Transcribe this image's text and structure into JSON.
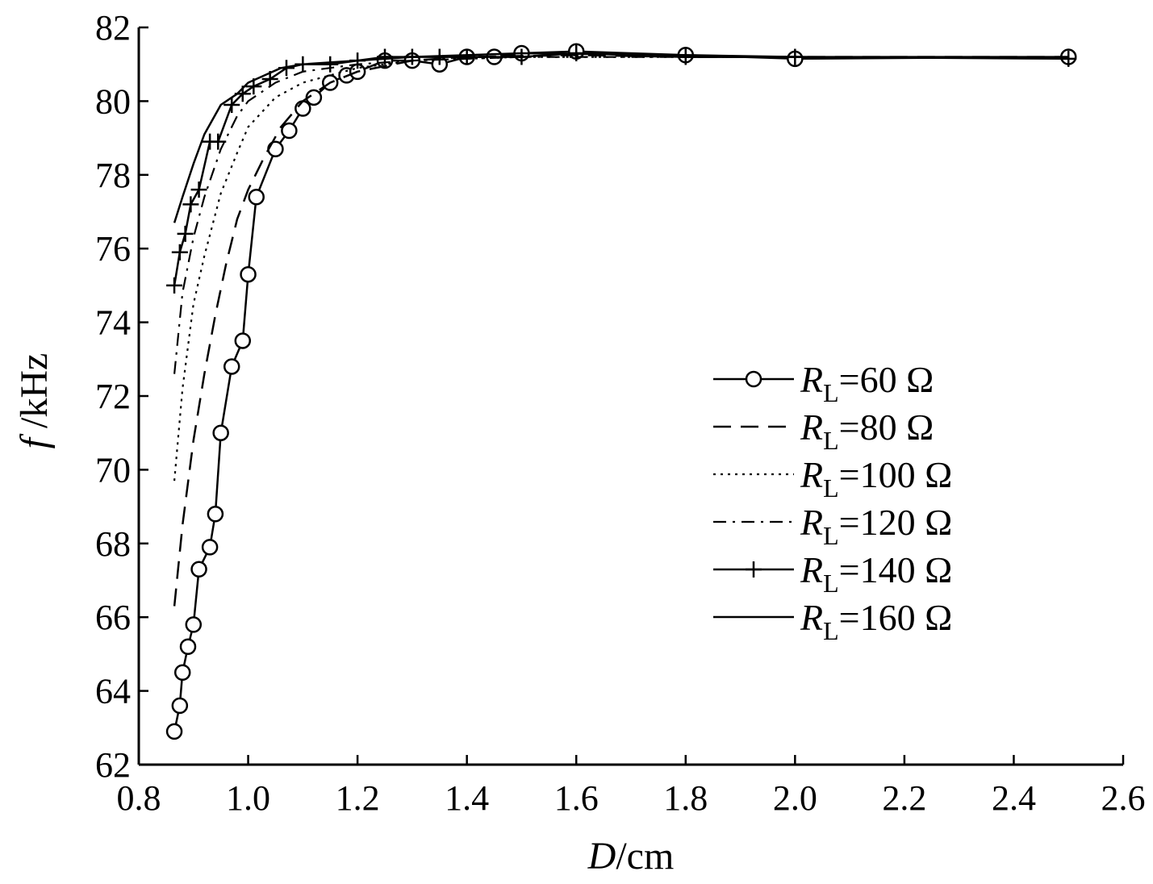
{
  "chart_data": {
    "type": "line",
    "title": "",
    "xlabel": {
      "var": "D",
      "unit": "/cm"
    },
    "ylabel": {
      "var": "f",
      "unit": " /kHz"
    },
    "xlim": [
      0.8,
      2.6
    ],
    "ylim": [
      62,
      82
    ],
    "xticks": [
      0.8,
      1.0,
      1.2,
      1.4,
      1.6,
      1.8,
      2.0,
      2.2,
      2.4,
      2.6
    ],
    "xtick_labels": [
      "0.8",
      "1.0",
      "1.2",
      "1.4",
      "1.6",
      "1.8",
      "2.0",
      "2.2",
      "2.4",
      "2.6"
    ],
    "yticks": [
      62,
      64,
      66,
      68,
      70,
      72,
      74,
      76,
      78,
      80,
      82
    ],
    "ytick_labels": [
      "62",
      "64",
      "66",
      "68",
      "70",
      "72",
      "74",
      "76",
      "78",
      "80",
      "82"
    ],
    "grid": false,
    "legend_position": "center-right",
    "series": [
      {
        "name": "RL=60 Ω",
        "label_var": "R",
        "label_sub": "L",
        "label_rest": "=60 Ω",
        "style": "solid",
        "marker": "circle",
        "x": [
          0.865,
          0.875,
          0.88,
          0.89,
          0.9,
          0.91,
          0.93,
          0.94,
          0.95,
          0.97,
          0.99,
          1.0,
          1.015,
          1.05,
          1.075,
          1.1,
          1.12,
          1.15,
          1.18,
          1.2,
          1.25,
          1.3,
          1.35,
          1.4,
          1.45,
          1.5,
          1.6,
          1.8,
          2.0,
          2.5
        ],
        "y": [
          62.9,
          63.6,
          64.5,
          65.2,
          65.8,
          67.3,
          67.9,
          68.8,
          71.0,
          72.8,
          73.5,
          75.3,
          77.4,
          78.7,
          79.2,
          79.8,
          80.1,
          80.5,
          80.7,
          80.8,
          81.1,
          81.1,
          81.0,
          81.2,
          81.2,
          81.3,
          81.35,
          81.25,
          81.15,
          81.2
        ]
      },
      {
        "name": "RL=80 Ω",
        "label_var": "R",
        "label_sub": "L",
        "label_rest": "=80 Ω",
        "style": "dashed",
        "marker": "none",
        "x": [
          0.865,
          0.88,
          0.9,
          0.92,
          0.94,
          0.96,
          0.98,
          1.0,
          1.03,
          1.06,
          1.1,
          1.15,
          1.2,
          1.3,
          1.4,
          1.6,
          1.8,
          2.0,
          2.5
        ],
        "y": [
          66.3,
          68.5,
          70.8,
          72.6,
          74.2,
          75.6,
          76.8,
          77.6,
          78.5,
          79.3,
          80.0,
          80.5,
          80.8,
          81.1,
          81.2,
          81.25,
          81.2,
          81.2,
          81.2
        ]
      },
      {
        "name": "RL=100 Ω",
        "label_var": "R",
        "label_sub": "L",
        "label_rest": "=100 Ω",
        "style": "dotted",
        "marker": "none",
        "x": [
          0.865,
          0.88,
          0.9,
          0.92,
          0.95,
          0.98,
          1.0,
          1.05,
          1.1,
          1.2,
          1.3,
          1.5,
          1.8,
          2.0,
          2.5
        ],
        "y": [
          69.7,
          72.2,
          74.5,
          75.8,
          77.5,
          78.6,
          79.3,
          80.1,
          80.5,
          80.9,
          81.1,
          81.2,
          81.2,
          81.2,
          81.2
        ]
      },
      {
        "name": "RL=120 Ω",
        "label_var": "R",
        "label_sub": "L",
        "label_rest": "=120 Ω",
        "style": "dashdot",
        "marker": "none",
        "x": [
          0.865,
          0.88,
          0.9,
          0.92,
          0.95,
          0.98,
          1.0,
          1.05,
          1.1,
          1.2,
          1.3,
          1.5,
          1.8,
          2.0,
          2.5
        ],
        "y": [
          72.6,
          74.8,
          76.3,
          77.4,
          78.7,
          79.6,
          80.0,
          80.5,
          80.8,
          81.0,
          81.1,
          81.2,
          81.2,
          81.2,
          81.2
        ]
      },
      {
        "name": "RL=140 Ω",
        "label_var": "R",
        "label_sub": "L",
        "label_rest": "=140 Ω",
        "style": "solid",
        "marker": "plus",
        "x": [
          0.865,
          0.875,
          0.885,
          0.895,
          0.91,
          0.93,
          0.945,
          0.97,
          0.99,
          1.01,
          1.04,
          1.07,
          1.1,
          1.15,
          1.2,
          1.25,
          1.3,
          1.35,
          1.4,
          1.5,
          1.6,
          1.8,
          2.0,
          2.5
        ],
        "y": [
          75.0,
          75.9,
          76.4,
          77.2,
          77.6,
          78.9,
          78.9,
          79.9,
          80.2,
          80.4,
          80.6,
          80.9,
          81.0,
          81.0,
          81.1,
          81.2,
          81.2,
          81.2,
          81.2,
          81.2,
          81.3,
          81.2,
          81.2,
          81.15
        ]
      },
      {
        "name": "RL=160 Ω",
        "label_var": "R",
        "label_sub": "L",
        "label_rest": "=160 Ω",
        "style": "solid",
        "marker": "none",
        "x": [
          0.865,
          0.88,
          0.9,
          0.92,
          0.95,
          0.98,
          1.0,
          1.03,
          1.06,
          1.1,
          1.2,
          1.3,
          1.5,
          1.8,
          2.0,
          2.5
        ],
        "y": [
          76.7,
          77.4,
          78.3,
          79.1,
          79.9,
          80.2,
          80.5,
          80.7,
          80.9,
          81.0,
          81.1,
          81.2,
          81.3,
          81.25,
          81.2,
          81.2
        ]
      }
    ]
  }
}
